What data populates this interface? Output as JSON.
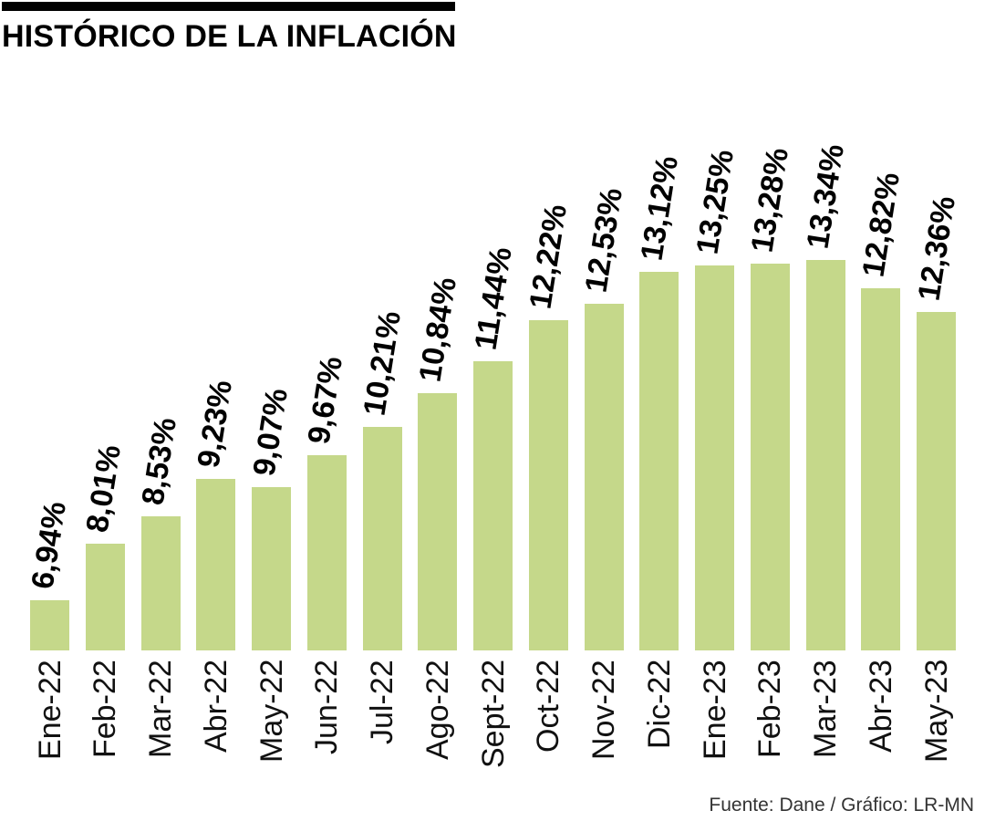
{
  "header": {
    "title": "HISTÓRICO DE LA INFLACIÓN"
  },
  "footer": {
    "source": "Fuente: Dane / Gráfico: LR-MN"
  },
  "colors": {
    "bar": "#c5d88a",
    "title_text": "#000000",
    "value_label_text": "#000000",
    "category_label_text": "#111111",
    "source_text": "#333333",
    "top_rule": "#000000",
    "background": "#ffffff"
  },
  "chart_data": {
    "type": "bar",
    "title": "HISTÓRICO DE LA INFLACIÓN",
    "categories": [
      "Ene-22",
      "Feb-22",
      "Mar-22",
      "Abr-22",
      "May-22",
      "Jun-22",
      "Jul-22",
      "Ago-22",
      "Sept-22",
      "Oct-22",
      "Nov-22",
      "Dic-22",
      "Ene-23",
      "Feb-23",
      "Mar-23",
      "Abr-23",
      "May-23"
    ],
    "values": [
      6.94,
      8.01,
      8.53,
      9.23,
      9.07,
      9.67,
      10.21,
      10.84,
      11.44,
      12.22,
      12.53,
      13.12,
      13.25,
      13.28,
      13.34,
      12.82,
      12.36
    ],
    "labels": [
      "6,94%",
      "8,01%",
      "8,53%",
      "9,23%",
      "9,07%",
      "9,67%",
      "10,21%",
      "10,84%",
      "11,44%",
      "12,22%",
      "12,53%",
      "13,12%",
      "13,25%",
      "13,28%",
      "13,34%",
      "12,82%",
      "12,36%"
    ],
    "xlabel": "",
    "ylabel": "",
    "ylim": [
      6,
      13.5
    ],
    "grid": false,
    "legend": "none",
    "axis_lines": "none",
    "value_label_rotation_deg": -81,
    "category_label_rotation_deg": -90,
    "source": "Fuente: Dane / Gráfico: LR-MN"
  }
}
